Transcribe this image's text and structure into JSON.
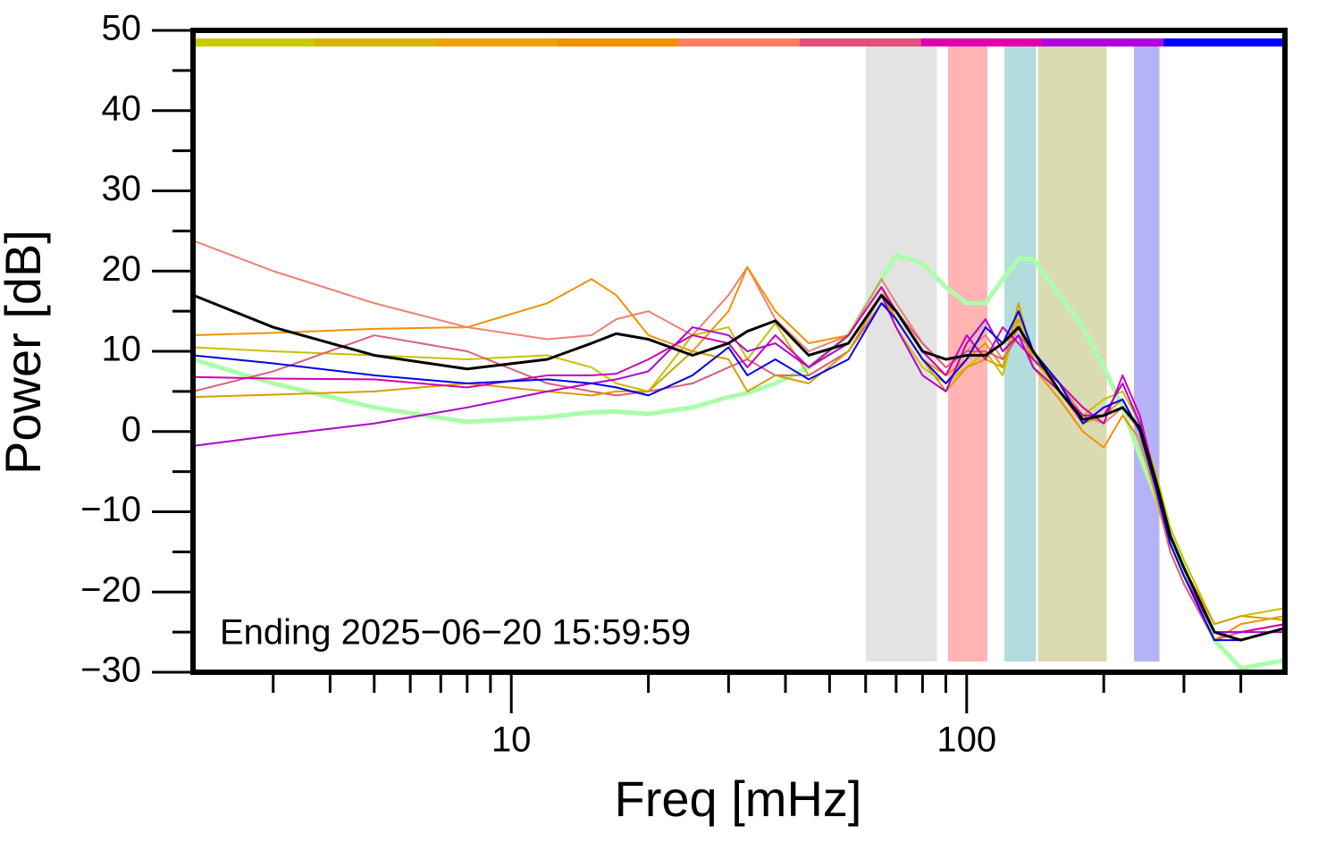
{
  "chart_data": {
    "type": "line",
    "x_label": "Freq [mHz]",
    "y_label": "Power [dB]",
    "annotation": "Ending 2025−06−20 15:59:59",
    "log_x": true,
    "xlim": [
      2,
      500
    ],
    "ylim": [
      -30,
      50
    ],
    "xticks": [
      10,
      100
    ],
    "xminorticks": [
      3,
      4,
      5,
      6,
      7,
      8,
      9,
      20,
      30,
      40,
      50,
      60,
      70,
      80,
      90,
      200,
      300,
      400
    ],
    "yticks": [
      {
        "value": -30,
        "label": "−30"
      },
      {
        "value": -20,
        "label": "−20"
      },
      {
        "value": -10,
        "label": "−10"
      },
      0,
      10,
      20,
      30,
      40,
      50
    ],
    "yminorticks": [
      -25,
      -15,
      -5,
      5,
      15,
      25,
      35,
      45
    ],
    "top_bar_colors": [
      "#c8cc00",
      "#d8b400",
      "#f0a000",
      "#f39000",
      "#ff7f60",
      "#e0507a",
      "#e000b0",
      "#b000e0",
      "#0000ff"
    ],
    "bands": [
      {
        "range": [
          60,
          86
        ],
        "color": "#e3e3e3"
      },
      {
        "range": [
          91,
          111
        ],
        "color": "#ffb3b3"
      },
      {
        "range": [
          121,
          142
        ],
        "color": "#b3dcdc"
      },
      {
        "range": [
          143.5,
          203
        ],
        "color": "#dadab3"
      },
      {
        "range": [
          233,
          265
        ],
        "color": "#b3b3f5"
      }
    ],
    "x": [
      2,
      3,
      5,
      8,
      12,
      15,
      17,
      20,
      25,
      30,
      33,
      38,
      45,
      55,
      65,
      70,
      80,
      90,
      100,
      110,
      120,
      130,
      140,
      160,
      180,
      200,
      220,
      240,
      260,
      280,
      300,
      350,
      400,
      500
    ],
    "series": [
      {
        "color": "#aaffaa",
        "width": 5,
        "values": [
          9,
          6,
          3,
          1.2,
          1.8,
          2.4,
          2.5,
          2.2,
          3,
          4.3,
          4.8,
          6,
          8,
          12,
          19,
          22,
          21,
          18,
          16,
          16,
          19,
          21.5,
          21.5,
          17,
          13,
          8,
          3,
          -3,
          -8,
          -13,
          -17,
          -26,
          -29.5,
          -28.5
        ]
      },
      {
        "color": "#f08070",
        "width": 2,
        "values": [
          23.8,
          20,
          16,
          13,
          11.5,
          12,
          14,
          15,
          12,
          17,
          20.5,
          14,
          10,
          12,
          19,
          16,
          11,
          8,
          10,
          12,
          9,
          13,
          9,
          6,
          2,
          1,
          3,
          0,
          -7,
          -14,
          -18,
          -26,
          -25,
          -24
        ]
      },
      {
        "color": "#f39000",
        "width": 2,
        "values": [
          12,
          12.3,
          12.8,
          13,
          16,
          19,
          17,
          12,
          10,
          15,
          20.5,
          15,
          11,
          12,
          18,
          14,
          9,
          7,
          9,
          11,
          8,
          14,
          8,
          4,
          0,
          -2,
          2,
          -1,
          -8,
          -15,
          -19,
          -26,
          -24,
          -23
        ]
      },
      {
        "color": "#c8c000",
        "width": 2,
        "values": [
          10.5,
          10,
          9.5,
          9,
          9.5,
          8,
          6,
          5,
          12,
          13,
          9,
          13.5,
          7,
          10,
          17,
          13,
          8,
          6,
          8,
          10,
          7,
          15,
          9,
          5,
          2,
          4,
          5,
          1,
          -5,
          -12,
          -16,
          -24,
          -23,
          -22
        ]
      },
      {
        "color": "#d9607a",
        "width": 2,
        "values": [
          5,
          7.5,
          12,
          10,
          6,
          5,
          4.5,
          5,
          6,
          8,
          9,
          7,
          7,
          10,
          16,
          15,
          11,
          8,
          10,
          10,
          9,
          12,
          10,
          5,
          1,
          3,
          4,
          0,
          -7,
          -15,
          -19,
          -26,
          -25,
          -24
        ]
      },
      {
        "color": "#d4a000",
        "width": 2,
        "values": [
          4.3,
          4.6,
          5,
          6,
          5,
          4.5,
          5,
          5,
          10,
          9,
          5,
          7,
          6,
          10,
          17,
          14,
          9,
          5,
          8,
          9,
          8,
          16,
          9,
          6,
          1,
          2,
          4,
          0,
          -6,
          -13,
          -17,
          -24,
          -23,
          -23.5
        ]
      },
      {
        "color": "#d000b0",
        "width": 2,
        "values": [
          6.8,
          6.6,
          6.5,
          5.5,
          7,
          7,
          7.2,
          9,
          12,
          11,
          8,
          12,
          8,
          12,
          18,
          15,
          10,
          7,
          12,
          9,
          13,
          11,
          9,
          6,
          3,
          1,
          7,
          2,
          -6,
          -14,
          -18,
          -25,
          -25,
          -24
        ]
      },
      {
        "color": "#b000d0",
        "width": 2,
        "values": [
          -1.8,
          -0.5,
          1,
          3,
          5,
          6,
          6.5,
          7.5,
          13,
          12,
          10,
          11,
          8,
          11,
          17,
          13,
          7,
          5,
          11,
          14,
          10,
          12,
          8,
          5,
          2,
          2,
          6,
          1,
          -6,
          -13,
          -17,
          -25,
          -25,
          -25
        ]
      },
      {
        "color": "#0000ee",
        "width": 2,
        "values": [
          9.5,
          8.5,
          7,
          6,
          6.5,
          6,
          5.5,
          4.5,
          7,
          10.5,
          7,
          9,
          6.5,
          9,
          16,
          14,
          9,
          6,
          9,
          13,
          11,
          15,
          10,
          6,
          1,
          3,
          4,
          0,
          -7,
          -14,
          -18,
          -26,
          -26,
          -24.5
        ]
      },
      {
        "color": "#000000",
        "width": 3,
        "values": [
          17,
          13,
          9.5,
          7.8,
          9,
          11,
          12.2,
          11.5,
          9.5,
          11,
          12.5,
          13.8,
          9.5,
          11,
          17,
          15,
          10,
          9,
          9.5,
          9.5,
          11,
          13,
          10,
          5,
          1.5,
          2,
          3,
          0.5,
          -6,
          -13,
          -17,
          -25,
          -26,
          -24.5
        ]
      }
    ]
  }
}
